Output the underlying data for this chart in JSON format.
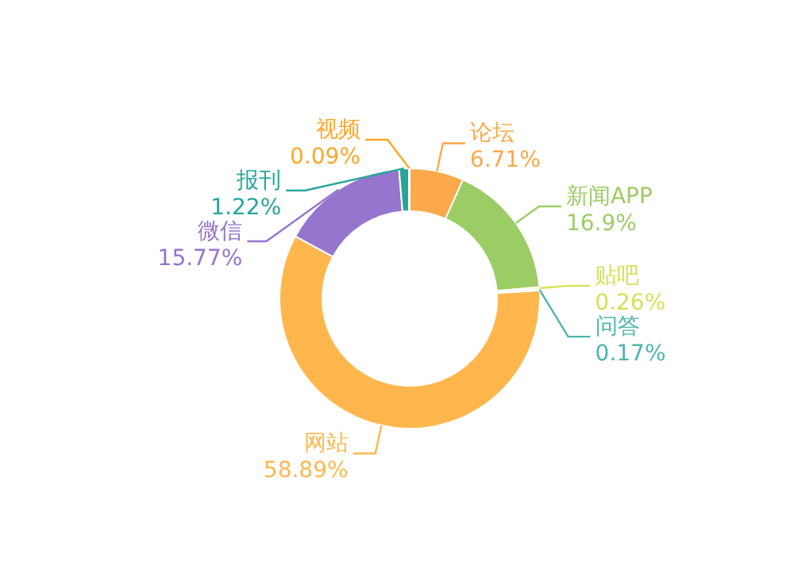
{
  "chart_data": {
    "type": "donut",
    "categories": [
      "论坛",
      "新闻APP",
      "贴吧",
      "问答",
      "网站",
      "微信",
      "报刊",
      "视频"
    ],
    "values": [
      6.71,
      16.9,
      0.26,
      0.17,
      58.89,
      15.77,
      1.22,
      0.09
    ],
    "value_labels": [
      "6.71%",
      "16.9%",
      "0.26%",
      "0.17%",
      "58.89%",
      "15.77%",
      "1.22%",
      "0.09%"
    ],
    "colors": [
      "#fba94a",
      "#9ccc65",
      "#d4e157",
      "#4db6ac",
      "#ffb74d",
      "#9575cd",
      "#26a69a",
      "#ffa726"
    ]
  }
}
